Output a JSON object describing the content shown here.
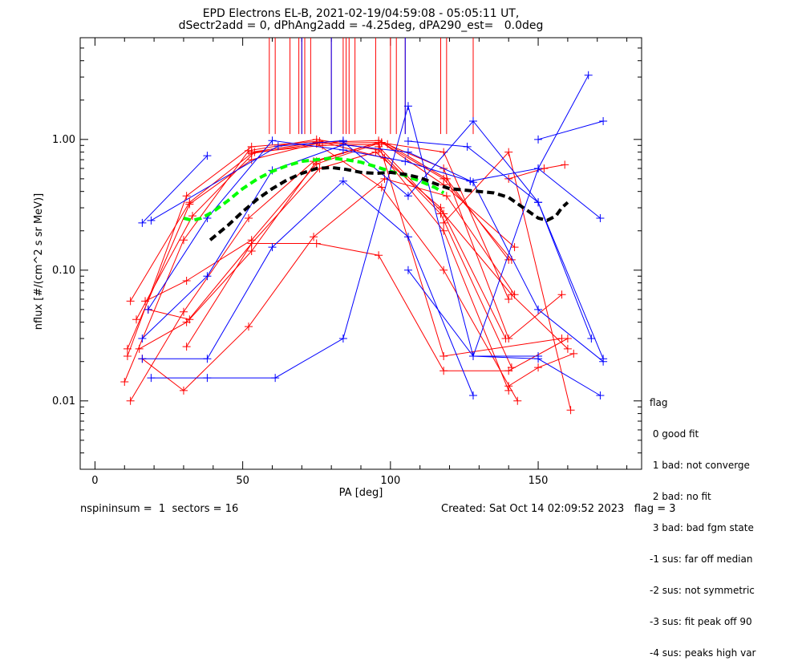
{
  "title_line1": "EPD Electrons EL-B, 2021-02-19/04:59:08 - 05:05:11 UT,",
  "title_line2": "dSectr2add = 0, dPhAng2add = -4.25deg, dPA290_est=   0.0deg",
  "footer_left": "nspininsum =  1  sectors = 16",
  "footer_right": "Created: Sat Oct 14 02:09:52 2023   flag = 3",
  "legend": {
    "title": "flag",
    "items": [
      " 0 good fit",
      " 1 bad: not converge",
      " 2 bad: no fit",
      " 3 bad: bad fgm state",
      "-1 sus: far off median",
      "-2 sus: not symmetric",
      "-3 sus: fit peak off 90",
      "-4 sus: peaks high var"
    ]
  },
  "colors": {
    "red": "#ff0000",
    "blue": "#0000ff",
    "green": "#00ff00",
    "black": "#000000"
  },
  "chart_data": {
    "type": "line",
    "xlabel": "PA [deg]",
    "ylabel": "nflux [#/(cm^2 s sr MeV)]",
    "xlim": [
      -5,
      185
    ],
    "ylim": [
      0.003,
      6.0
    ],
    "yscale": "log",
    "x_ticks": [
      0,
      50,
      100,
      150
    ],
    "x_tick_labels": [
      "0",
      "50",
      "100",
      "150"
    ],
    "y_ticks": [
      0.01,
      0.1,
      1.0
    ],
    "y_tick_labels": [
      "0.01",
      "0.10",
      "1.00"
    ],
    "vertical_lines": {
      "color": "red",
      "y_from": 1.1,
      "x": [
        59,
        61,
        66,
        69,
        70,
        71,
        73,
        80,
        84,
        85,
        86,
        88,
        95,
        100,
        102,
        105,
        117,
        119,
        128
      ]
    },
    "vertical_lines_blue": {
      "color": "blue",
      "y_from": 1.1,
      "x": [
        70,
        80,
        105
      ]
    },
    "series": [
      {
        "color": "red",
        "x": [
          12,
          32,
          53,
          75,
          97,
          118,
          142
        ],
        "y": [
          0.058,
          0.33,
          0.78,
          0.93,
          0.95,
          0.45,
          0.15
        ]
      },
      {
        "color": "red",
        "x": [
          10,
          30,
          52,
          75,
          96,
          117,
          141
        ],
        "y": [
          0.014,
          0.17,
          0.82,
          1.0,
          0.83,
          0.27,
          0.018
        ]
      },
      {
        "color": "red",
        "x": [
          11,
          31,
          53,
          76,
          98,
          118,
          140
        ],
        "y": [
          0.022,
          0.37,
          0.88,
          0.97,
          0.72,
          0.2,
          0.012
        ]
      },
      {
        "color": "red",
        "x": [
          14,
          33,
          54,
          77,
          99,
          119,
          140
        ],
        "y": [
          0.042,
          0.26,
          0.8,
          0.9,
          0.92,
          0.5,
          0.12
        ]
      },
      {
        "color": "red",
        "x": [
          11,
          32,
          53,
          75,
          97,
          118,
          143
        ],
        "y": [
          0.025,
          0.32,
          0.7,
          0.93,
          0.43,
          0.1,
          0.01
        ]
      },
      {
        "color": "red",
        "x": [
          12,
          30,
          52,
          74,
          96,
          118,
          140
        ],
        "y": [
          0.01,
          0.048,
          0.25,
          0.68,
          0.95,
          0.8,
          0.06
        ]
      },
      {
        "color": "red",
        "x": [
          15,
          31,
          53,
          76,
          95,
          117,
          139
        ],
        "y": [
          0.025,
          0.04,
          0.16,
          0.6,
          0.8,
          0.3,
          0.03
        ]
      },
      {
        "color": "red",
        "x": [
          16,
          30,
          52,
          74,
          98,
          119,
          142
        ],
        "y": [
          0.021,
          0.012,
          0.037,
          0.18,
          0.5,
          0.37,
          0.065
        ]
      },
      {
        "color": "red",
        "x": [
          17,
          31,
          53,
          75,
          97,
          118,
          141
        ],
        "y": [
          0.058,
          0.083,
          0.17,
          0.65,
          0.95,
          0.5,
          0.12
        ]
      },
      {
        "color": "red",
        "x": [
          18,
          32,
          53,
          75,
          96,
          118,
          158
        ],
        "y": [
          0.05,
          0.042,
          0.14,
          0.68,
          0.95,
          0.022,
          0.03
        ]
      },
      {
        "color": "red",
        "x": [
          31,
          53,
          75,
          96,
          118,
          140,
          160
        ],
        "y": [
          0.026,
          0.16,
          0.16,
          0.13,
          0.017,
          0.017,
          0.03
        ]
      },
      {
        "color": "red",
        "x": [
          53,
          75,
          96,
          118,
          140,
          158
        ],
        "y": [
          0.8,
          0.95,
          0.98,
          0.6,
          0.03,
          0.065
        ]
      },
      {
        "color": "red",
        "x": [
          96,
          118,
          141,
          160
        ],
        "y": [
          0.88,
          0.27,
          0.065,
          0.025
        ]
      },
      {
        "color": "red",
        "x": [
          118,
          140,
          161
        ],
        "y": [
          0.23,
          0.8,
          0.0085
        ]
      },
      {
        "color": "red",
        "x": [
          140,
          152,
          159
        ],
        "y": [
          0.5,
          0.6,
          0.64
        ]
      },
      {
        "color": "red",
        "x": [
          140,
          150,
          162
        ],
        "y": [
          0.013,
          0.018,
          0.023
        ]
      },
      {
        "color": "blue",
        "x": [
          16,
          38
        ],
        "y": [
          0.23,
          0.75
        ]
      },
      {
        "color": "blue",
        "x": [
          19,
          62,
          84
        ],
        "y": [
          0.24,
          0.89,
          0.98
        ]
      },
      {
        "color": "blue",
        "x": [
          16,
          38,
          60,
          84,
          106,
          128,
          150,
          172
        ],
        "y": [
          0.03,
          0.09,
          0.58,
          0.91,
          0.8,
          0.47,
          0.05,
          0.02
        ]
      },
      {
        "color": "blue",
        "x": [
          18,
          38,
          60,
          84,
          105,
          127,
          150,
          171
        ],
        "y": [
          0.05,
          0.25,
          0.98,
          0.83,
          0.68,
          0.48,
          0.6,
          0.25
        ]
      },
      {
        "color": "blue",
        "x": [
          16,
          38,
          60,
          84,
          106,
          128
        ],
        "y": [
          0.021,
          0.021,
          0.15,
          0.48,
          0.18,
          0.011
        ]
      },
      {
        "color": "blue",
        "x": [
          19,
          38,
          61,
          84,
          106,
          128,
          150,
          167
        ],
        "y": [
          0.015,
          0.015,
          0.015,
          0.03,
          1.8,
          0.022,
          0.6,
          3.1
        ]
      },
      {
        "color": "blue",
        "x": [
          106,
          128,
          150
        ],
        "y": [
          0.1,
          0.022,
          0.022
        ]
      },
      {
        "color": "blue",
        "x": [
          128,
          150,
          171
        ],
        "y": [
          0.022,
          0.021,
          0.011
        ]
      },
      {
        "color": "blue",
        "x": [
          84,
          106,
          128,
          150,
          172
        ],
        "y": [
          0.96,
          0.37,
          1.38,
          0.33,
          0.021
        ]
      },
      {
        "color": "blue",
        "x": [
          106,
          126,
          150,
          168
        ],
        "y": [
          0.97,
          0.88,
          0.33,
          0.03
        ]
      },
      {
        "color": "blue",
        "x": [
          150,
          172
        ],
        "y": [
          1.0,
          1.38
        ]
      }
    ],
    "fit_green": {
      "color": "green",
      "style": "dashed",
      "x": [
        30,
        33,
        36,
        40,
        45,
        50,
        55,
        60,
        65,
        70,
        75,
        80,
        85,
        90,
        95,
        100,
        105,
        110,
        115,
        118
      ],
      "y": [
        0.25,
        0.24,
        0.25,
        0.28,
        0.34,
        0.42,
        0.5,
        0.57,
        0.63,
        0.68,
        0.7,
        0.72,
        0.7,
        0.67,
        0.62,
        0.57,
        0.53,
        0.48,
        0.43,
        0.39
      ]
    },
    "fit_black": {
      "color": "black",
      "style": "dashed",
      "x": [
        39,
        45,
        50,
        55,
        60,
        65,
        70,
        75,
        80,
        85,
        90,
        95,
        100,
        105,
        110,
        115,
        120,
        125,
        130,
        135,
        140,
        145,
        150,
        153,
        156,
        158,
        160
      ],
      "y": [
        0.17,
        0.22,
        0.28,
        0.35,
        0.42,
        0.49,
        0.55,
        0.6,
        0.61,
        0.59,
        0.56,
        0.55,
        0.56,
        0.54,
        0.51,
        0.46,
        0.42,
        0.41,
        0.4,
        0.39,
        0.36,
        0.3,
        0.25,
        0.24,
        0.26,
        0.3,
        0.33
      ]
    }
  }
}
